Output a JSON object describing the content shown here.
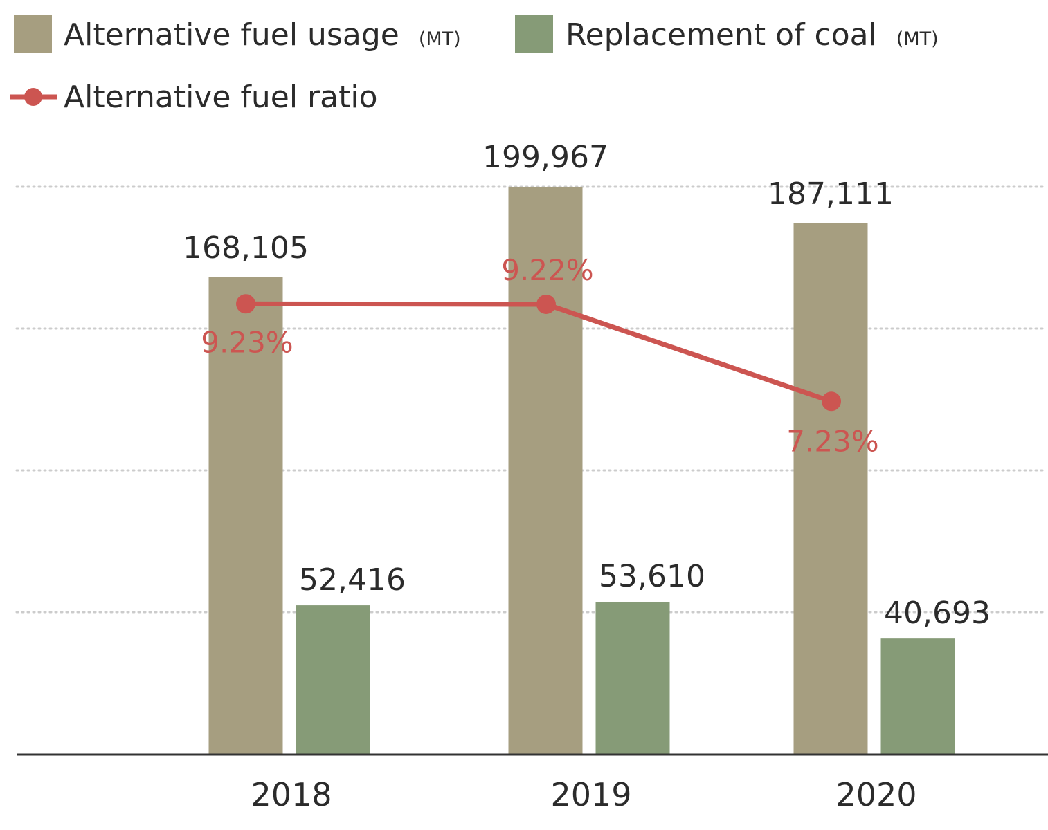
{
  "colors": {
    "fuel_usage": "#a69e80",
    "coal_replacement": "#869b77",
    "ratio": "#cc5551",
    "text": "#2b2b2b",
    "grid": "#cccccc",
    "axis": "#333333"
  },
  "legend": {
    "fuel_usage_label": "Alternative fuel usage",
    "fuel_usage_unit": "(MT)",
    "coal_label": "Replacement of coal",
    "coal_unit": "(MT)",
    "ratio_label": "Alternative fuel ratio"
  },
  "chart_data": {
    "type": "bar",
    "categories": [
      "2018",
      "2019",
      "2020"
    ],
    "series": [
      {
        "name": "Alternative fuel usage (MT)",
        "type": "bar",
        "values": [
          168105,
          199967,
          187111
        ],
        "labels": [
          "168,105",
          "199,967",
          "187,111"
        ]
      },
      {
        "name": "Replacement of coal (MT)",
        "type": "bar",
        "values": [
          52416,
          53610,
          40693
        ],
        "labels": [
          "52,416",
          "53,610",
          "40,693"
        ]
      },
      {
        "name": "Alternative fuel ratio",
        "type": "line",
        "values": [
          9.23,
          9.22,
          7.23
        ],
        "labels": [
          "9.23%",
          "9.22%",
          "7.23%"
        ]
      }
    ],
    "ylim": [
      0,
      200000
    ],
    "ratio_ylim": [
      0,
      10
    ],
    "grid": true,
    "legend_position": "top-left"
  }
}
